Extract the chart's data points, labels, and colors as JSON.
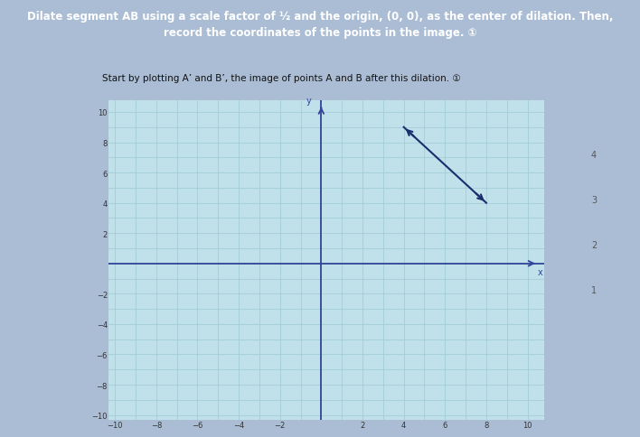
{
  "title_line1": "Dilate segment AB using a scale factor of ½ and the origin, (0, 0), as the center of dilation. Then,",
  "title_line2": "record the coordinates of the points in the image. ①",
  "subtitle": "Start by plotting A’ and B’, the image of points A and B after this dilation. ①",
  "xlim": [
    -10,
    10
  ],
  "ylim": [
    -10,
    10
  ],
  "xticks": [
    -10,
    -8,
    -6,
    -4,
    -2,
    2,
    4,
    6,
    8,
    10
  ],
  "yticks": [
    -10,
    -8,
    -6,
    -4,
    -2,
    2,
    4,
    6,
    8,
    10
  ],
  "grid_minor_ticks": [
    -10,
    -9,
    -8,
    -7,
    -6,
    -5,
    -4,
    -3,
    -2,
    -1,
    0,
    1,
    2,
    3,
    4,
    5,
    6,
    7,
    8,
    9,
    10
  ],
  "grid_color": "#9ecad4",
  "bg_color": "#c0e0ea",
  "outer_bg": "#aabdd4",
  "axis_color": "#334499",
  "segment_color": "#1a2e6e",
  "point_A_prime": [
    4,
    9
  ],
  "point_B_prime": [
    8,
    4
  ],
  "title_bg_color": "#3344aa",
  "title_text_color": "#ffffff",
  "title_fontsize": 8.5,
  "subtitle_fontsize": 7.5,
  "tick_fontsize": 6,
  "right_panel_color": "#e8e0d0"
}
